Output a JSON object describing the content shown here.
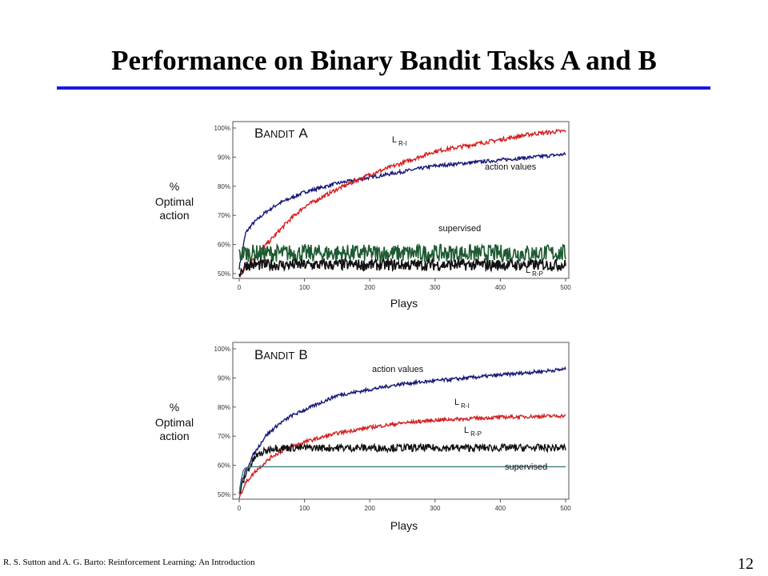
{
  "slide": {
    "title": "Performance on Binary Bandit Tasks A and B",
    "footer": "R. S. Sutton and A. G. Barto: Reinforcement Learning: An Introduction",
    "page_number": "12",
    "rule_color": "#1a1adb"
  },
  "chart_data": [
    {
      "type": "line",
      "title": "Bandit A",
      "title_parts": {
        "first": "B",
        "rest": "ANDIT",
        "suffix": "A"
      },
      "xlabel": "Plays",
      "ylabel_lines": [
        "%",
        "Optimal",
        "action"
      ],
      "xlim": [
        0,
        500
      ],
      "ylim": [
        50,
        100
      ],
      "x_ticks": [
        0,
        100,
        200,
        300,
        400,
        500
      ],
      "y_tick_labels": [
        "50%",
        "60%",
        "70%",
        "80%",
        "90%",
        "100%"
      ],
      "y_tick_values": [
        50,
        60,
        70,
        80,
        90,
        100
      ],
      "grid": false,
      "series": [
        {
          "name": "action values",
          "label_main": "action values",
          "label_sub": "",
          "color": "#1a1a7a",
          "noise": 0.6,
          "x": [
            0,
            10,
            20,
            40,
            60,
            80,
            100,
            150,
            200,
            250,
            300,
            350,
            400,
            450,
            500
          ],
          "y": [
            52,
            64,
            67,
            71,
            74,
            76,
            78,
            81,
            83,
            85,
            87,
            88,
            89,
            90,
            91
          ]
        },
        {
          "name": "L R-I",
          "label_main": "L",
          "label_sub": "R-I",
          "color": "#d42020",
          "noise": 0.7,
          "x": [
            0,
            10,
            25,
            50,
            75,
            100,
            125,
            150,
            200,
            250,
            300,
            350,
            400,
            450,
            500
          ],
          "y": [
            49,
            52,
            56,
            62,
            68,
            73,
            76,
            79,
            84,
            88,
            92,
            94,
            96,
            98,
            99
          ]
        },
        {
          "name": "supervised",
          "label_main": "supervised",
          "label_sub": "",
          "color": "#1e5a32",
          "noise": 3.0,
          "x": [
            0,
            5,
            50,
            500
          ],
          "y": [
            56,
            57,
            57,
            57
          ]
        },
        {
          "name": "L R-P",
          "label_main": "L",
          "label_sub": "R-P",
          "color": "#111111",
          "noise": 2.0,
          "x": [
            0,
            10,
            50,
            500
          ],
          "y": [
            50,
            53,
            53,
            53
          ]
        }
      ]
    },
    {
      "type": "line",
      "title": "Bandit B",
      "title_parts": {
        "first": "B",
        "rest": "ANDIT",
        "suffix": "B"
      },
      "xlabel": "Plays",
      "ylabel_lines": [
        "%",
        "Optimal",
        "action"
      ],
      "xlim": [
        0,
        500
      ],
      "ylim": [
        50,
        100
      ],
      "x_ticks": [
        0,
        100,
        200,
        300,
        400,
        500
      ],
      "y_tick_labels": [
        "50%",
        "60%",
        "70%",
        "80%",
        "90%",
        "100%"
      ],
      "y_tick_values": [
        50,
        60,
        70,
        80,
        90,
        100
      ],
      "grid": false,
      "series": [
        {
          "name": "action values",
          "label_main": "action values",
          "label_sub": "",
          "color": "#1a1a7a",
          "noise": 0.6,
          "x": [
            0,
            10,
            20,
            40,
            60,
            80,
            100,
            150,
            200,
            250,
            300,
            350,
            400,
            450,
            500
          ],
          "y": [
            52,
            58,
            63,
            70,
            74,
            77,
            79,
            84,
            86,
            88,
            89,
            90,
            91,
            92,
            93
          ]
        },
        {
          "name": "L R-I",
          "label_main": "L",
          "label_sub": "R-I",
          "color": "#d42020",
          "noise": 0.6,
          "x": [
            0,
            10,
            25,
            50,
            75,
            100,
            150,
            200,
            250,
            300,
            400,
            500
          ],
          "y": [
            49,
            54,
            58,
            63,
            66,
            68,
            71,
            73,
            74.5,
            75.5,
            76.5,
            77
          ]
        },
        {
          "name": "L R-P",
          "label_main": "L",
          "label_sub": "R-P",
          "color": "#111111",
          "noise": 1.3,
          "x": [
            0,
            10,
            25,
            50,
            500
          ],
          "y": [
            50,
            57,
            63,
            66,
            66
          ]
        },
        {
          "name": "supervised",
          "label_main": "supervised",
          "label_sub": "",
          "color": "#3a7a80",
          "noise": 0,
          "x": [
            0,
            3,
            6,
            9,
            15,
            500
          ],
          "y": [
            50,
            55,
            58,
            59,
            59.5,
            59.5
          ]
        }
      ]
    }
  ]
}
